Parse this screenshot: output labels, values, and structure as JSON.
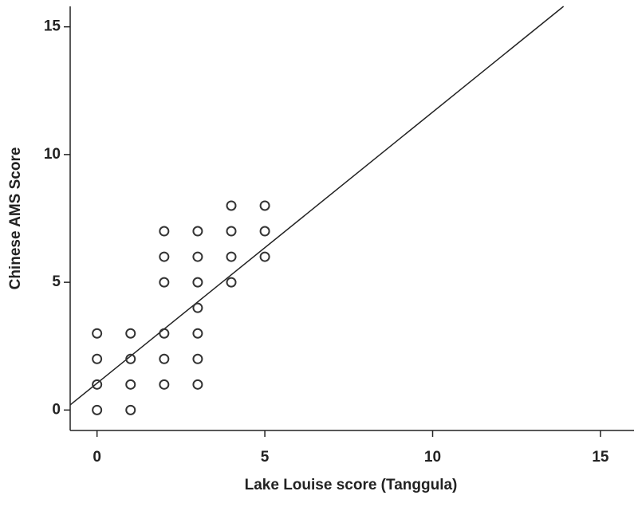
{
  "chart_data": {
    "type": "scatter",
    "x_label": "Lake Louise score (Tanggula)",
    "y_label": "Chinese AMS Score",
    "xlim": [
      -0.8,
      16
    ],
    "ylim": [
      -0.8,
      15.8
    ],
    "xticks": [
      0,
      5,
      10,
      15
    ],
    "yticks": [
      0,
      5,
      10,
      15
    ],
    "grid": false,
    "color": "#333333",
    "x": [
      0,
      0,
      0,
      0,
      1,
      1,
      1,
      1,
      2,
      2,
      2,
      2,
      2,
      2,
      3,
      3,
      3,
      3,
      3,
      3,
      3,
      4,
      4,
      4,
      4,
      5,
      5,
      5
    ],
    "y": [
      0,
      1,
      2,
      3,
      0,
      1,
      2,
      3,
      1,
      2,
      3,
      5,
      6,
      7,
      1,
      2,
      3,
      4,
      5,
      6,
      7,
      5,
      6,
      7,
      8,
      6,
      7,
      8
    ],
    "regression": {
      "x": [
        -0.8,
        13.9
      ],
      "y": [
        0.2,
        15.8
      ]
    }
  }
}
